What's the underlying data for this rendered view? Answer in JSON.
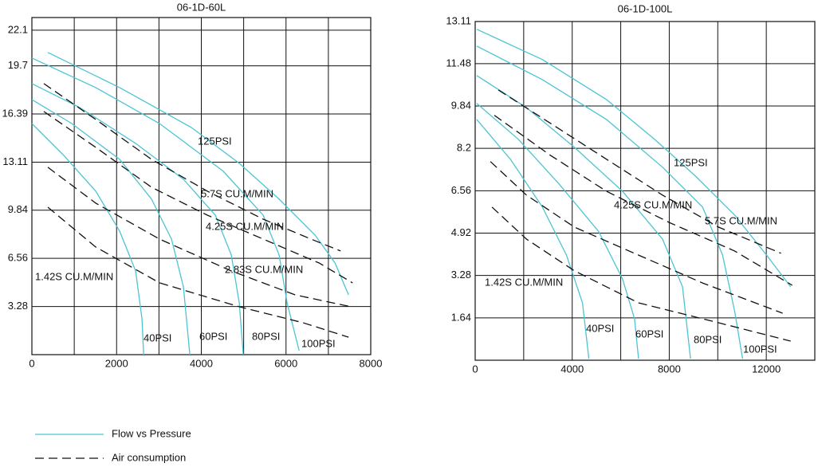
{
  "chart_data": [
    {
      "type": "line",
      "title": "06-1D-60L",
      "xlim": [
        0,
        8000
      ],
      "xticks": [
        0,
        2000,
        4000,
        6000,
        8000
      ],
      "x_minor_ticks": [
        1000,
        3000,
        5000,
        7000
      ],
      "ylim": [
        0,
        22.96
      ],
      "yticks": [
        {
          "value": 3.28,
          "label": "3.28"
        },
        {
          "value": 6.56,
          "label": "6.56"
        },
        {
          "value": 9.84,
          "label": "9.84"
        },
        {
          "value": 13.11,
          "label": "13.11"
        },
        {
          "value": 16.39,
          "label": "16.39"
        },
        {
          "value": 19.67,
          "label": "19.7"
        },
        22.1
      ],
      "grid": true,
      "series": [
        {
          "name": "40PSI",
          "color": "#4cc4d4",
          "dashed": false,
          "x": [
            0,
            753,
            1507,
            2072,
            2448,
            2599,
            2637
          ],
          "values": [
            15.74,
            13.57,
            11.13,
            8.41,
            5.7,
            2.44,
            0
          ]
        },
        {
          "name": "60PSI",
          "color": "#4cc4d4",
          "dashed": false,
          "x": [
            0,
            942,
            2072,
            2825,
            3296,
            3578,
            3729
          ],
          "values": [
            17.37,
            15.74,
            13.3,
            10.59,
            7.87,
            4.61,
            0
          ]
        },
        {
          "name": "80PSI",
          "color": "#4cc4d4",
          "dashed": false,
          "x": [
            0,
            1130,
            2448,
            3578,
            4331,
            4708,
            4896,
            4991
          ],
          "values": [
            18.46,
            16.83,
            14.39,
            11.94,
            9.5,
            6.79,
            3.53,
            0
          ]
        },
        {
          "name": "100PSI",
          "color": "#4cc4d4",
          "dashed": false,
          "x": [
            0,
            1507,
            3013,
            4520,
            5461,
            5838,
            6026,
            6309
          ],
          "values": [
            20.2,
            18.19,
            15.74,
            12.49,
            9.5,
            6.79,
            3.53,
            0.27
          ]
        },
        {
          "name": "125PSI",
          "color": "#4cc4d4",
          "dashed": false,
          "x": [
            377,
            2072,
            3766,
            4896,
            5838,
            6686,
            7156,
            7476
          ],
          "values": [
            20.58,
            18.19,
            15.47,
            13.03,
            10.59,
            8.14,
            6.24,
            4.07
          ]
        },
        {
          "name": "1.42S CU.M/MIN",
          "color": "#111111",
          "dashed": true,
          "x": [
            377,
            1507,
            3013,
            4896,
            6403,
            7476
          ],
          "values": [
            10.04,
            7.33,
            4.89,
            3.26,
            2.17,
            1.19
          ]
        },
        {
          "name": "2.83S CU.M/MIN",
          "color": "#111111",
          "dashed": true,
          "x": [
            377,
            1507,
            3013,
            4708,
            6215,
            7533
          ],
          "values": [
            12.76,
            10.32,
            7.87,
            5.7,
            4.07,
            3.26
          ]
        },
        {
          "name": "4.25S CU.M/MIN",
          "color": "#111111",
          "dashed": true,
          "x": [
            282,
            1507,
            2825,
            4143,
            5461,
            6780,
            7571
          ],
          "values": [
            16.56,
            14.12,
            11.4,
            9.5,
            7.87,
            6.24,
            4.89
          ]
        },
        {
          "name": "5.7S CU.M/MIN",
          "color": "#111111",
          "dashed": true,
          "x": [
            282,
            1507,
            2825,
            4143,
            5461,
            6591,
            7288
          ],
          "values": [
            18.46,
            16.02,
            13.3,
            11.13,
            9.23,
            7.87,
            7.06
          ]
        }
      ]
    },
    {
      "type": "line",
      "title": "06-1D-100L",
      "xlim": [
        0,
        14000
      ],
      "xticks": [
        0,
        4000,
        8000,
        12000
      ],
      "x_minor_ticks": [
        2000,
        6000,
        10000
      ],
      "ylim": [
        0,
        13.11
      ],
      "yticks": [
        1.64,
        3.28,
        4.92,
        6.56,
        {
          "value": 8.2,
          "label": "8.2"
        },
        9.84,
        11.48,
        13.11
      ],
      "grid": true,
      "series": [
        {
          "name": "40PSI",
          "color": "#4cc4d4",
          "dashed": false,
          "x": [
            66,
            1452,
            2772,
            3762,
            4422,
            4686
          ],
          "values": [
            9.32,
            7.78,
            5.93,
            4.07,
            2.22,
            0.06
          ]
        },
        {
          "name": "60PSI",
          "color": "#4cc4d4",
          "dashed": false,
          "x": [
            66,
            1782,
            3432,
            5083,
            6073,
            6568,
            6733
          ],
          "values": [
            9.94,
            8.55,
            6.85,
            4.99,
            3.15,
            1.6,
            0.06
          ]
        },
        {
          "name": "80PSI",
          "color": "#4cc4d4",
          "dashed": false,
          "x": [
            66,
            2112,
            4092,
            6073,
            7723,
            8548,
            8878
          ],
          "values": [
            11.02,
            9.78,
            8.24,
            6.54,
            4.69,
            2.84,
            0.06
          ]
        },
        {
          "name": "100PSI",
          "color": "#4cc4d4",
          "dashed": false,
          "x": [
            66,
            2772,
            5413,
            7723,
            9373,
            10198,
            10693,
            11023
          ],
          "values": [
            12.16,
            10.86,
            9.32,
            7.47,
            5.93,
            4.07,
            1.91,
            0.06
          ]
        },
        {
          "name": "125PSI",
          "color": "#4cc4d4",
          "dashed": false,
          "x": [
            66,
            2772,
            5413,
            7393,
            9043,
            10693,
            12013,
            13003
          ],
          "values": [
            12.81,
            11.64,
            10.09,
            8.55,
            7.16,
            5.62,
            4.07,
            2.84
          ]
        },
        {
          "name": "1.42S CU.M/MIN",
          "color": "#111111",
          "dashed": true,
          "x": [
            693,
            2112,
            4092,
            6733,
            10033,
            13003
          ],
          "values": [
            5.93,
            4.69,
            3.46,
            2.22,
            1.45,
            0.74
          ]
        },
        {
          "color": "#111111",
          "dashed": true,
          "x": [
            627,
            2112,
            4092,
            6733,
            9373,
            12673
          ],
          "values": [
            7.69,
            6.39,
            5.15,
            4.07,
            2.99,
            1.82
          ]
        },
        {
          "name": "4.25S CU.M/MIN",
          "color": "#111111",
          "dashed": true,
          "x": [
            792,
            3102,
            5413,
            8053,
            10693,
            13069
          ],
          "values": [
            9.48,
            7.93,
            6.54,
            5.31,
            4.23,
            2.9
          ]
        },
        {
          "name": "5.7S CU.M/MIN",
          "color": "#111111",
          "dashed": true,
          "x": [
            957,
            3102,
            5413,
            7723,
            10033,
            12607
          ],
          "values": [
            10.46,
            9.17,
            7.78,
            6.39,
            5.15,
            4.14
          ]
        }
      ]
    }
  ],
  "legend": [
    {
      "name": "Flow vs Pressure",
      "color": "#4cc4d4",
      "dashed": false
    },
    {
      "name": "Air consumption",
      "color": "#111111",
      "dashed": true
    }
  ]
}
